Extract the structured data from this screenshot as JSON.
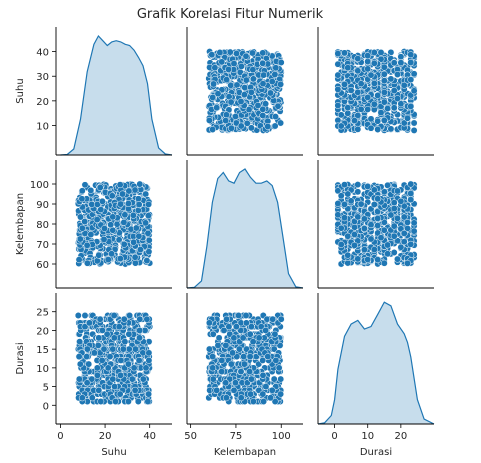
{
  "chart_data": {
    "type": "pairplot",
    "title": "Grafik Korelasi Fitur Numerik",
    "variables": [
      {
        "name": "Suhu",
        "range": [
          8,
          40
        ],
        "x_ticks": [
          0,
          20,
          40
        ],
        "y_ticks": [
          10,
          20,
          30,
          40
        ],
        "axis_lim": [
          -2,
          50
        ]
      },
      {
        "name": "Kelembapan",
        "range": [
          60,
          100
        ],
        "x_ticks": [
          50,
          75,
          100
        ],
        "y_ticks": [
          60,
          70,
          80,
          90,
          100
        ],
        "axis_lim": [
          48,
          112
        ]
      },
      {
        "name": "Durasi",
        "range": [
          1,
          24
        ],
        "x_ticks": [
          0,
          10,
          20
        ],
        "y_ticks": [
          0,
          5,
          10,
          15,
          20,
          25
        ],
        "axis_lim": [
          -5,
          30
        ]
      }
    ],
    "kde": [
      {
        "variable": "Suhu",
        "x": [
          0,
          3,
          6,
          9,
          12,
          15,
          17,
          19,
          21,
          23,
          25,
          27,
          29,
          31,
          33,
          35,
          37,
          39,
          41,
          44,
          47,
          50
        ],
        "density": [
          0.0,
          0.004,
          0.05,
          0.3,
          0.7,
          0.93,
          1.0,
          0.96,
          0.92,
          0.95,
          0.96,
          0.95,
          0.93,
          0.92,
          0.88,
          0.82,
          0.75,
          0.6,
          0.3,
          0.06,
          0.008,
          0.0
        ]
      },
      {
        "variable": "Kelembapan",
        "x": [
          48,
          52,
          56,
          59,
          62,
          65,
          68,
          71,
          74,
          77,
          80,
          83,
          86,
          89,
          92,
          95,
          98,
          101,
          104,
          108,
          112
        ],
        "density": [
          0.0,
          0.005,
          0.06,
          0.35,
          0.72,
          0.92,
          0.97,
          0.9,
          0.88,
          0.97,
          1.0,
          0.93,
          0.88,
          0.88,
          0.9,
          0.86,
          0.72,
          0.42,
          0.12,
          0.01,
          0.0
        ]
      },
      {
        "variable": "Durasi",
        "x": [
          -5,
          -3,
          -1,
          0,
          1,
          3,
          5,
          7,
          9,
          11,
          13,
          15,
          17,
          19,
          21,
          22,
          23,
          25,
          27,
          30
        ],
        "density": [
          0.0,
          0.01,
          0.07,
          0.2,
          0.45,
          0.72,
          0.82,
          0.85,
          0.78,
          0.8,
          0.9,
          1.0,
          0.97,
          0.82,
          0.74,
          0.67,
          0.55,
          0.2,
          0.04,
          0.0
        ]
      }
    ],
    "scatter": {
      "n_points": 600,
      "marker_color": "#1f77b4",
      "marker_edge": "#ffffff",
      "durasi_integer_valued": true
    },
    "diag_fill": "#1f77b4",
    "grid": false,
    "legend": "none"
  }
}
